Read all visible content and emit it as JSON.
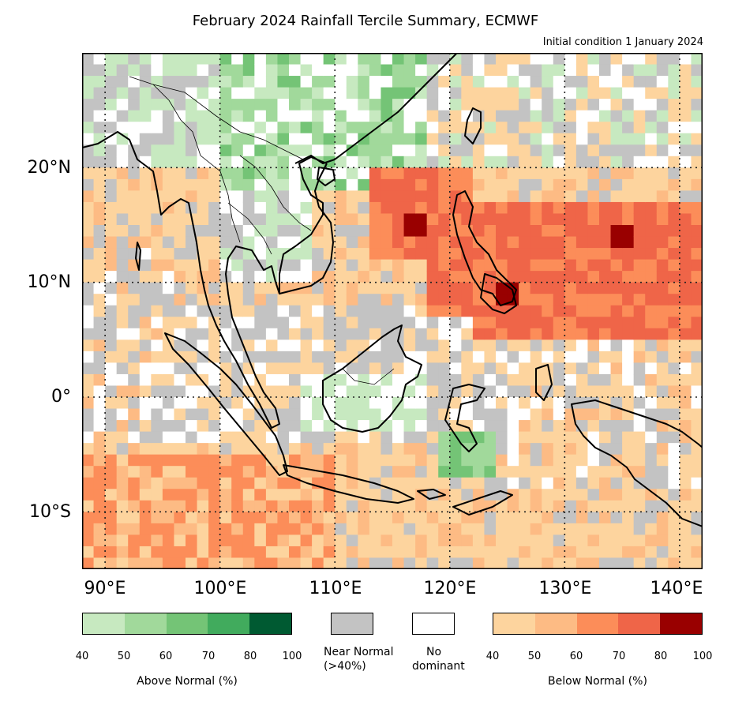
{
  "title": "February 2024 Rainfall Tercile Summary, ECMWF",
  "subtitle": "Initial condition 1 January 2024",
  "map": {
    "lon_range": [
      88,
      142
    ],
    "lat_range": [
      -15,
      30
    ],
    "lat_labels": [
      "20°N",
      "10°N",
      "0°",
      "10°S"
    ],
    "lat_values": [
      20,
      10,
      0,
      -10
    ],
    "lon_labels": [
      "90°E",
      "100°E",
      "110°E",
      "120°E",
      "130°E",
      "140°E"
    ],
    "lon_values": [
      90,
      100,
      110,
      120,
      130,
      140
    ],
    "gridlines": "dotted",
    "colors": {
      "above": [
        "#c7e9c0",
        "#a1d99b",
        "#74c476",
        "#41ab5d",
        "#005a32"
      ],
      "near_normal": "#c3c3c3",
      "no_dominant": "#ffffff",
      "below": [
        "#fdd49e",
        "#fdbb84",
        "#fc8d59",
        "#ef6548",
        "#990000"
      ]
    }
  },
  "legend": {
    "above": {
      "ticks": [
        "40",
        "50",
        "60",
        "70",
        "80",
        "100"
      ],
      "label": "Above Normal (%)"
    },
    "near_normal": {
      "line1": "Near Normal",
      "line2": "(>40%)"
    },
    "no_dominant": {
      "line1": "No",
      "line2": "dominant"
    },
    "below": {
      "ticks": [
        "40",
        "50",
        "60",
        "70",
        "80",
        "100"
      ],
      "label": "Below Normal (%)"
    }
  }
}
